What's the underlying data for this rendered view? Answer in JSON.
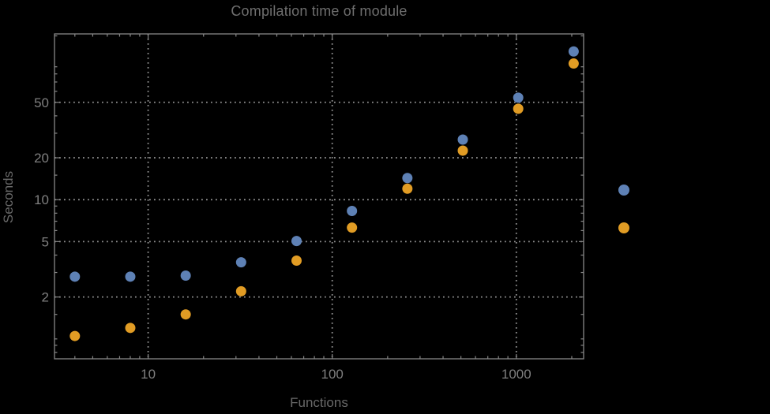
{
  "chart_data": {
    "type": "scatter",
    "title": "Compilation time of module",
    "xlabel": "Functions",
    "ylabel": "Seconds",
    "xscale": "log",
    "yscale": "log",
    "xlim": [
      3.1,
      2320
    ],
    "ylim": [
      0.72,
      155
    ],
    "x": [
      4,
      8,
      16,
      32,
      64,
      128,
      256,
      512,
      1024,
      2048
    ],
    "series": [
      {
        "name": "series-blue",
        "color": "#5e81b5",
        "values": [
          2.8,
          2.8,
          2.85,
          3.55,
          5.05,
          8.3,
          14.3,
          27,
          54,
          116
        ]
      },
      {
        "name": "series-orange",
        "color": "#e19c24",
        "values": [
          1.05,
          1.2,
          1.5,
          2.2,
          3.65,
          6.3,
          12,
          22.5,
          45,
          95
        ]
      }
    ],
    "x_major_ticks": [
      10,
      100,
      1000
    ],
    "x_tick_labels": [
      "10",
      "100",
      "1000"
    ],
    "x_minor_ticks": [
      4,
      5,
      6,
      7,
      8,
      9,
      20,
      30,
      40,
      50,
      60,
      70,
      80,
      90,
      200,
      300,
      400,
      500,
      600,
      700,
      800,
      900,
      2000
    ],
    "y_major_ticks": [
      2,
      5,
      10,
      20,
      50
    ],
    "y_tick_labels": [
      "2",
      "5",
      "10",
      "20",
      "50"
    ],
    "y_minor_ticks": [
      0.8,
      0.9,
      1,
      1.5,
      3,
      4,
      6,
      7,
      8,
      9,
      15,
      30,
      40,
      60,
      70,
      80,
      90,
      150
    ],
    "grid": "dotted lines at major ticks, both axes",
    "legend_position": "right-of-frame, markers only (no visible text)"
  },
  "legend": {
    "markers": [
      {
        "name": "legend-marker-blue",
        "color": "#5e81b5"
      },
      {
        "name": "legend-marker-orange",
        "color": "#e19c24"
      }
    ]
  },
  "colors": {
    "background": "#000000",
    "frame": "#878787",
    "grid": "#8f8f8f",
    "tick_label": "#7f7f7f",
    "title_text": "#6f6f6f",
    "axis_label_text": "#696969"
  }
}
